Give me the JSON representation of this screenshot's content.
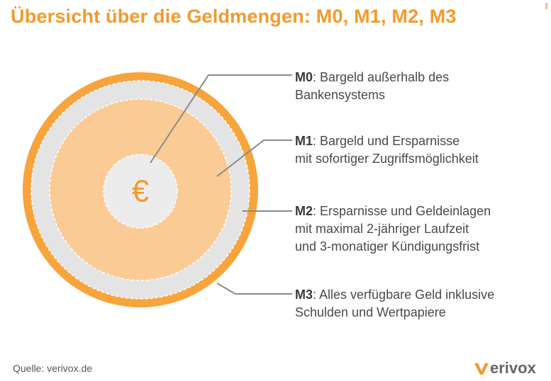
{
  "title": "Übersicht über die Geldmengen: M0, M1, M2, M3",
  "center_symbol": "€",
  "items": [
    {
      "term": "M0",
      "line1": ": Bargeld außerhalb des",
      "line2": "Bankensystems",
      "line3": ""
    },
    {
      "term": "M1",
      "line1": ": Bargeld und Ersparnisse",
      "line2": "mit sofortiger Zugriffsmöglichkeit",
      "line3": ""
    },
    {
      "term": "M2",
      "line1": ": Ersparnisse und Geldeinlagen",
      "line2": "mit maximal 2-jähriger Laufzeit",
      "line3": "und 3-monatiger Kündigungsfrist"
    },
    {
      "term": "M3",
      "line1": ": Alles verfügbare Geld inklusive",
      "line2": "Schulden und Wertpapiere",
      "line3": ""
    }
  ],
  "source": "Quelle: verivox.de",
  "logo": {
    "mark": "v",
    "text": "erivox",
    "mark_color": "#f39a2b",
    "text_color": "#666666"
  },
  "colors": {
    "accent": "#f39a2b",
    "ring_outer": "#f7a43c",
    "ring_grey": "#e4e4e4",
    "core_fill": "#fbcb95",
    "center_fill": "#ececec",
    "leader_line": "#8a8a8a"
  }
}
